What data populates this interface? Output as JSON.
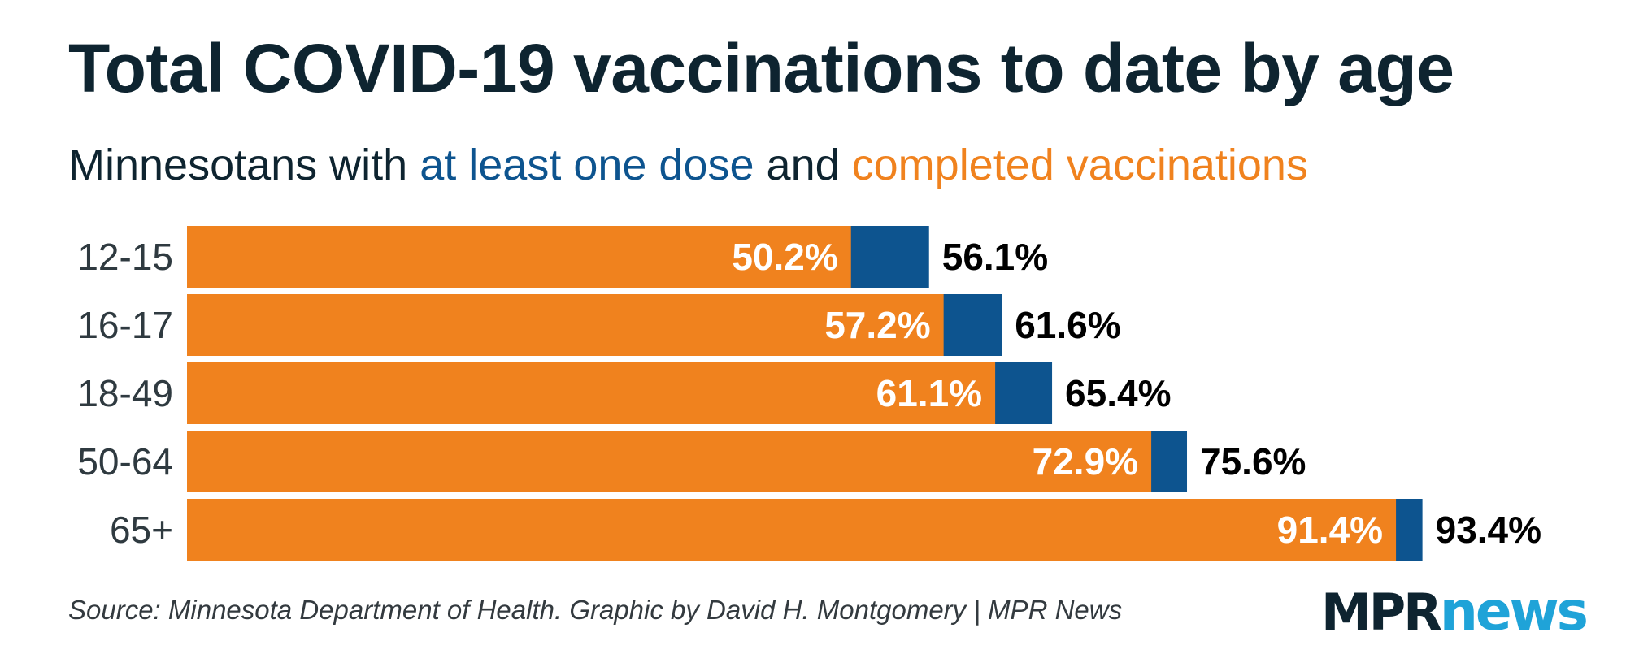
{
  "title": "Total COVID-19 vaccinations to date by age",
  "subtitle": {
    "prefix": "Minnesotans with ",
    "series1": "at least one dose",
    "middle": " and ",
    "series2": "completed vaccinations"
  },
  "chart_data": {
    "type": "bar",
    "orientation": "horizontal",
    "stacking": "overlay",
    "categories": [
      "12-15",
      "16-17",
      "18-49",
      "50-64",
      "65+"
    ],
    "series": [
      {
        "name": "at least one dose",
        "color": "#0d548f",
        "values": [
          56.1,
          61.6,
          65.4,
          75.6,
          93.4
        ],
        "labels": [
          "56.1%",
          "61.6%",
          "65.4%",
          "75.6%",
          "93.4%"
        ]
      },
      {
        "name": "completed vaccinations",
        "color": "#f0821e",
        "values": [
          50.2,
          57.2,
          61.1,
          72.9,
          91.4
        ],
        "labels": [
          "50.2%",
          "57.2%",
          "61.1%",
          "72.9%",
          "91.4%"
        ]
      }
    ],
    "xlim": [
      0,
      100
    ],
    "title": "Total COVID-19 vaccinations to date by age",
    "subtitle": "Minnesotans with at least one dose and completed vaccinations",
    "xlabel": "",
    "ylabel": ""
  },
  "source": "Source: Minnesota Department of Health. Graphic by David H. Montgomery | MPR News",
  "logo": {
    "part1": "MPR",
    "part2": "news"
  }
}
